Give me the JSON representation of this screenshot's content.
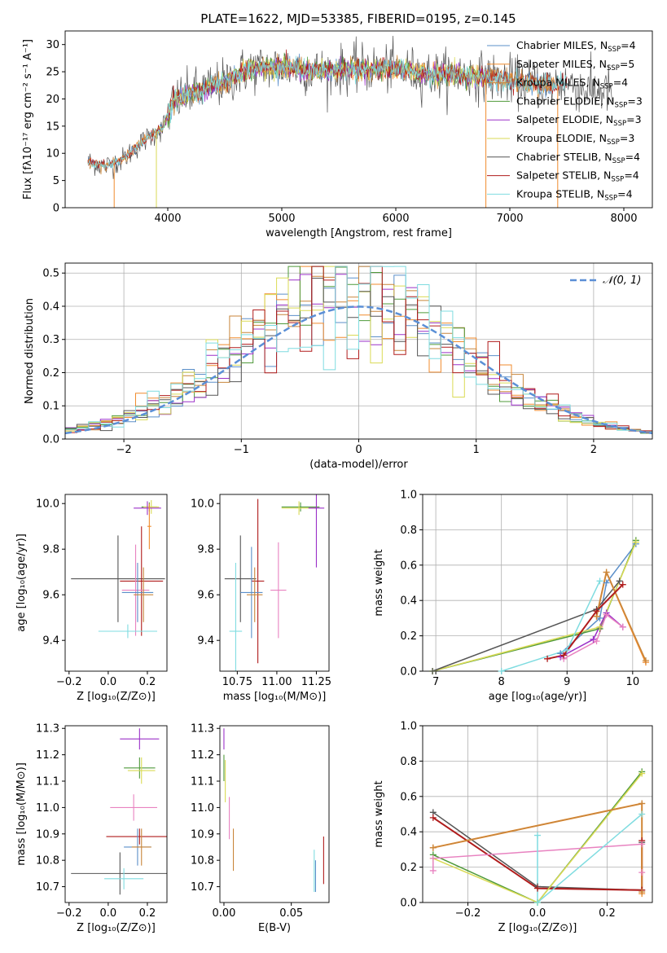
{
  "figure_title": "PLATE=1622, MJD=53385, FIBERID=0195, z=0.145",
  "colors": {
    "chabrier_miles": "#5b8fc9",
    "salpeter_miles": "#f08b2d",
    "kroupa_miles": "#c8863b",
    "chabrier_elodie": "#4f9a3a",
    "salpeter_elodie": "#9b30c8",
    "kroupa_elodie": "#dada55",
    "chabrier_stelib": "#555555",
    "salpeter_stelib": "#b01c1c",
    "kroupa_stelib": "#7fdce0",
    "pink": "#e882c0",
    "normal_curve": "#5b8fd6"
  },
  "chart_data": [
    {
      "id": "spectrum",
      "type": "line",
      "title": "PLATE=1622, MJD=53385, FIBERID=0195, z=0.145",
      "xlabel": "wavelength [Angstrom, rest frame]",
      "ylabel": "Flux [fλ10⁻¹⁷ erg cm⁻² s⁻¹ A⁻¹]",
      "xlim": [
        3100,
        8250
      ],
      "ylim": [
        0,
        32.5
      ],
      "xticks": [
        4000,
        5000,
        6000,
        7000,
        8000
      ],
      "yticks": [
        0,
        5,
        10,
        15,
        20,
        25,
        30
      ],
      "grid": false,
      "legend": "top-right",
      "legend_entries": [
        {
          "label": "Chabrier MILES, N",
          "sub": "SSP",
          "tail": "=4",
          "color": "chabrier_miles"
        },
        {
          "label": "Salpeter MILES, N",
          "sub": "SSP",
          "tail": "=5",
          "color": "salpeter_miles"
        },
        {
          "label": "Kroupa MILES, N",
          "sub": "SSP",
          "tail": "=4",
          "color": "kroupa_miles"
        },
        {
          "label": "Chabrier ELODIE, N",
          "sub": "SSP",
          "tail": "=3",
          "color": "chabrier_elodie"
        },
        {
          "label": "Salpeter ELODIE, N",
          "sub": "SSP",
          "tail": "=3",
          "color": "salpeter_elodie"
        },
        {
          "label": "Kroupa ELODIE, N",
          "sub": "SSP",
          "tail": "=3",
          "color": "kroupa_elodie"
        },
        {
          "label": "Chabrier STELIB, N",
          "sub": "SSP",
          "tail": "=4",
          "color": "chabrier_stelib"
        },
        {
          "label": "Salpeter STELIB, N",
          "sub": "SSP",
          "tail": "=4",
          "color": "salpeter_stelib"
        },
        {
          "label": "Kroupa STELIB, N",
          "sub": "SSP",
          "tail": "=4",
          "color": "kroupa_stelib"
        }
      ],
      "continuum": {
        "x": [
          3300,
          3450,
          3600,
          3800,
          3950,
          4050,
          4200,
          4500,
          4700,
          5000,
          5300,
          5600,
          6000,
          6300,
          6600,
          7000,
          7300,
          7500,
          7700
        ],
        "y": [
          8.5,
          7.6,
          8.8,
          12.5,
          14.5,
          19.5,
          21,
          23,
          25.5,
          26,
          25,
          25.5,
          25.5,
          24.5,
          24.5,
          23.5,
          22.5,
          23,
          21.5
        ]
      },
      "cutoffs": [
        {
          "wave": 3530,
          "color": "salpeter_miles"
        },
        {
          "wave": 3900,
          "color": "kroupa_elodie"
        },
        {
          "wave": 6790,
          "color": "salpeter_miles"
        },
        {
          "wave": 7420,
          "color": "salpeter_miles"
        }
      ]
    },
    {
      "id": "residuals",
      "type": "line",
      "xlabel": "(data-model)/error",
      "ylabel": "Normed distribution",
      "xlim": [
        -2.5,
        2.5
      ],
      "ylim": [
        0,
        0.53
      ],
      "xticks": [
        -2,
        -1,
        0,
        1,
        2
      ],
      "yticks": [
        0.0,
        0.1,
        0.2,
        0.3,
        0.4,
        0.5
      ],
      "grid": true,
      "legend": "top-right",
      "legend_label": "𝒩(0, 1)",
      "bin_width": 0.1,
      "histogram_sigma": 0.95
    },
    {
      "id": "age_vs_z",
      "type": "scatter",
      "xlabel": "Z [log₁₀(Z/Z⊙)]",
      "ylabel": "age  [log₁₀(age/yr)]",
      "xlim": [
        -0.22,
        0.3
      ],
      "ylim": [
        9.265,
        10.04
      ],
      "xticks": [
        -0.2,
        0.0,
        0.2
      ],
      "yticks": [
        9.4,
        9.6,
        9.8,
        10.0
      ],
      "points": [
        {
          "x": 0.21,
          "y": 9.985,
          "xerr": 0.04,
          "yerr": 0.02,
          "color": "chabrier_elodie"
        },
        {
          "x": 0.22,
          "y": 9.985,
          "xerr": 0.04,
          "yerr": 0.03,
          "color": "kroupa_elodie"
        },
        {
          "x": 0.2,
          "y": 9.98,
          "xerr": 0.07,
          "yerr": 0.03,
          "color": "salpeter_elodie"
        },
        {
          "x": 0.21,
          "y": 9.9,
          "xerr": 0.01,
          "yerr": 0.1,
          "color": "salpeter_miles"
        },
        {
          "x": 0.05,
          "y": 9.67,
          "xerr": 0.24,
          "yerr": 0.19,
          "color": "chabrier_stelib"
        },
        {
          "x": 0.17,
          "y": 9.66,
          "xerr": 0.11,
          "yerr": 0.24,
          "color": "salpeter_stelib"
        },
        {
          "x": 0.14,
          "y": 9.62,
          "xerr": 0.07,
          "yerr": 0.2,
          "color": "pink"
        },
        {
          "x": 0.15,
          "y": 9.61,
          "xerr": 0.08,
          "yerr": 0.13,
          "color": "chabrier_miles"
        },
        {
          "x": 0.18,
          "y": 9.6,
          "xerr": 0.05,
          "yerr": 0.12,
          "color": "kroupa_miles"
        },
        {
          "x": 0.1,
          "y": 9.44,
          "xerr": 0.15,
          "yerr": 0.03,
          "color": "kroupa_stelib"
        }
      ]
    },
    {
      "id": "age_vs_mass",
      "type": "scatter",
      "xlabel": "mass [log₁₀(M/M⊙)]",
      "ylabel": "",
      "xlim": [
        10.64,
        11.33
      ],
      "ylim": [
        9.265,
        10.04
      ],
      "xticks": [
        10.75,
        11.0,
        11.25
      ],
      "yticks": [
        9.4,
        9.6,
        9.8,
        10.0
      ],
      "points": [
        {
          "x": 11.15,
          "y": 9.985,
          "xerr": 0.12,
          "yerr": 0.02,
          "color": "chabrier_elodie"
        },
        {
          "x": 11.14,
          "y": 9.98,
          "xerr": 0.11,
          "yerr": 0.03,
          "color": "kroupa_elodie"
        },
        {
          "x": 11.25,
          "y": 9.98,
          "xerr": 0.05,
          "yerr": 0.26,
          "color": "salpeter_elodie"
        },
        {
          "x": 10.77,
          "y": 9.67,
          "xerr": 0.1,
          "yerr": 0.19,
          "color": "chabrier_stelib"
        },
        {
          "x": 10.88,
          "y": 9.66,
          "xerr": 0.04,
          "yerr": 0.36,
          "color": "salpeter_stelib"
        },
        {
          "x": 11.01,
          "y": 9.62,
          "xerr": 0.05,
          "yerr": 0.21,
          "color": "pink"
        },
        {
          "x": 10.84,
          "y": 9.61,
          "xerr": 0.07,
          "yerr": 0.2,
          "color": "chabrier_miles"
        },
        {
          "x": 10.86,
          "y": 9.6,
          "xerr": 0.05,
          "yerr": 0.12,
          "color": "kroupa_miles"
        },
        {
          "x": 10.74,
          "y": 9.44,
          "xerr": 0.04,
          "yerr": 0.3,
          "color": "kroupa_stelib"
        }
      ]
    },
    {
      "id": "weight_vs_age",
      "type": "line",
      "xlabel": "age  [log₁₀(age/yr)]",
      "ylabel": "mass weight",
      "xlim": [
        6.8,
        10.3
      ],
      "ylim": [
        0,
        1.0
      ],
      "xticks": [
        7,
        8,
        9,
        10
      ],
      "yticks": [
        0.0,
        0.2,
        0.4,
        0.6,
        0.8,
        1.0
      ],
      "grid": true,
      "series": [
        {
          "color": "chabrier_miles",
          "x": [
            8.9,
            9.5,
            9.6,
            10.05
          ],
          "y": [
            0.1,
            0.3,
            0.5,
            0.72
          ]
        },
        {
          "color": "chabrier_elodie",
          "x": [
            6.95,
            9.5,
            10.05
          ],
          "y": [
            0.0,
            0.24,
            0.74
          ]
        },
        {
          "color": "kroupa_elodie",
          "x": [
            6.95,
            9.5,
            10.05
          ],
          "y": [
            0.0,
            0.25,
            0.73
          ]
        },
        {
          "color": "salpeter_elodie",
          "x": [
            8.9,
            9.4,
            9.6,
            9.85
          ],
          "y": [
            0.08,
            0.18,
            0.33,
            0.25
          ]
        },
        {
          "color": "chabrier_stelib",
          "x": [
            6.95,
            9.45,
            9.8
          ],
          "y": [
            0.0,
            0.35,
            0.51
          ]
        },
        {
          "color": "kroupa_stelib",
          "x": [
            8.0,
            9.0,
            9.5
          ],
          "y": [
            0.0,
            0.12,
            0.51
          ]
        },
        {
          "color": "pink",
          "x": [
            8.95,
            9.45,
            9.6,
            9.85
          ],
          "y": [
            0.07,
            0.17,
            0.32,
            0.25
          ]
        },
        {
          "color": "salpeter_miles",
          "x": [
            9.45,
            9.6,
            10.2
          ],
          "y": [
            0.31,
            0.56,
            0.05
          ]
        },
        {
          "color": "kroupa_miles",
          "x": [
            9.45,
            9.6,
            10.2
          ],
          "y": [
            0.31,
            0.56,
            0.06
          ]
        },
        {
          "color": "salpeter_stelib",
          "x": [
            8.7,
            8.95,
            9.45,
            9.85
          ],
          "y": [
            0.07,
            0.09,
            0.34,
            0.49
          ]
        }
      ]
    },
    {
      "id": "mass_vs_z",
      "type": "scatter",
      "xlabel": "Z [log₁₀(Z/Z⊙)]",
      "ylabel": "mass [log₁₀(M/M⊙)]",
      "xlim": [
        -0.22,
        0.3
      ],
      "ylim": [
        10.64,
        11.31
      ],
      "xticks": [
        -0.2,
        0.0,
        0.2
      ],
      "yticks": [
        10.7,
        10.8,
        10.9,
        11.0,
        11.1,
        11.2,
        11.3
      ],
      "points": [
        {
          "x": 0.16,
          "y": 11.26,
          "xerr": 0.1,
          "yerr": 0.04,
          "color": "salpeter_elodie"
        },
        {
          "x": 0.16,
          "y": 11.15,
          "xerr": 0.08,
          "yerr": 0.04,
          "color": "chabrier_elodie"
        },
        {
          "x": 0.17,
          "y": 11.14,
          "xerr": 0.07,
          "yerr": 0.05,
          "color": "kroupa_elodie"
        },
        {
          "x": 0.13,
          "y": 11.0,
          "xerr": 0.12,
          "yerr": 0.05,
          "color": "pink"
        },
        {
          "x": 0.16,
          "y": 10.89,
          "xerr": 0.17,
          "yerr": 0.03,
          "color": "salpeter_stelib"
        },
        {
          "x": 0.15,
          "y": 10.85,
          "xerr": 0.07,
          "yerr": 0.07,
          "color": "chabrier_miles"
        },
        {
          "x": 0.17,
          "y": 10.85,
          "xerr": 0.05,
          "yerr": 0.07,
          "color": "kroupa_miles"
        },
        {
          "x": 0.06,
          "y": 10.75,
          "xerr": 0.25,
          "yerr": 0.08,
          "color": "chabrier_stelib"
        },
        {
          "x": 0.08,
          "y": 10.73,
          "xerr": 0.1,
          "yerr": 0.04,
          "color": "kroupa_stelib"
        }
      ]
    },
    {
      "id": "mass_vs_ebv",
      "type": "scatter",
      "xlabel": "E(B-V)",
      "ylabel": "",
      "xlim": [
        -0.003,
        0.078
      ],
      "ylim": [
        10.64,
        11.31
      ],
      "xticks": [
        0.0,
        0.05
      ],
      "yticks": [
        10.7,
        10.8,
        10.9,
        11.0,
        11.1,
        11.2,
        11.3
      ],
      "points": [
        {
          "x": 0.0,
          "y": 11.26,
          "xerr": 0.0,
          "yerr": 0.04,
          "color": "salpeter_elodie"
        },
        {
          "x": 0.0,
          "y": 11.15,
          "xerr": 0.0,
          "yerr": 0.05,
          "color": "chabrier_elodie"
        },
        {
          "x": 0.001,
          "y": 11.1,
          "xerr": 0.0,
          "yerr": 0.08,
          "color": "kroupa_elodie"
        },
        {
          "x": 0.004,
          "y": 10.96,
          "xerr": 0.0,
          "yerr": 0.08,
          "color": "pink"
        },
        {
          "x": 0.007,
          "y": 10.84,
          "xerr": 0.0,
          "yerr": 0.08,
          "color": "kroupa_miles"
        },
        {
          "x": 0.067,
          "y": 10.76,
          "xerr": 0.0,
          "yerr": 0.08,
          "color": "kroupa_stelib"
        },
        {
          "x": 0.068,
          "y": 10.74,
          "xerr": 0.0,
          "yerr": 0.06,
          "color": "chabrier_miles"
        },
        {
          "x": 0.074,
          "y": 10.8,
          "xerr": 0.0,
          "yerr": 0.09,
          "color": "salpeter_stelib"
        }
      ]
    },
    {
      "id": "weight_vs_z",
      "type": "line",
      "xlabel": "Z [log₁₀(Z/Z⊙)]",
      "ylabel": "mass weight",
      "xlim": [
        -0.33,
        0.33
      ],
      "ylim": [
        0,
        1.0
      ],
      "xticks": [
        -0.2,
        0.0,
        0.2
      ],
      "yticks": [
        0.0,
        0.2,
        0.4,
        0.6,
        0.8,
        1.0
      ],
      "grid": true,
      "series": [
        {
          "color": "chabrier_stelib",
          "x": [
            -0.3,
            0.0,
            0.3,
            0.3
          ],
          "y": [
            0.51,
            0.09,
            0.07,
            0.34
          ]
        },
        {
          "color": "salpeter_stelib",
          "x": [
            -0.3,
            0.0,
            0.3,
            0.3
          ],
          "y": [
            0.48,
            0.08,
            0.07,
            0.35
          ]
        },
        {
          "color": "chabrier_elodie",
          "x": [
            -0.3,
            0.0,
            0.3
          ],
          "y": [
            0.27,
            0.0,
            0.74
          ]
        },
        {
          "color": "kroupa_elodie",
          "x": [
            -0.3,
            0.0,
            0.3
          ],
          "y": [
            0.25,
            0.0,
            0.73
          ]
        },
        {
          "color": "pink",
          "x": [
            -0.3,
            -0.3,
            0.3,
            0.3
          ],
          "y": [
            0.18,
            0.25,
            0.33,
            0.17
          ]
        },
        {
          "color": "kroupa_stelib",
          "x": [
            0.0,
            0.0,
            0.3
          ],
          "y": [
            0.38,
            0.0,
            0.5
          ]
        },
        {
          "color": "salpeter_miles",
          "x": [
            -0.3,
            0.3,
            0.3
          ],
          "y": [
            0.31,
            0.56,
            0.05
          ]
        },
        {
          "color": "kroupa_miles",
          "x": [
            -0.3,
            0.3,
            0.3
          ],
          "y": [
            0.31,
            0.56,
            0.06
          ]
        }
      ]
    }
  ]
}
